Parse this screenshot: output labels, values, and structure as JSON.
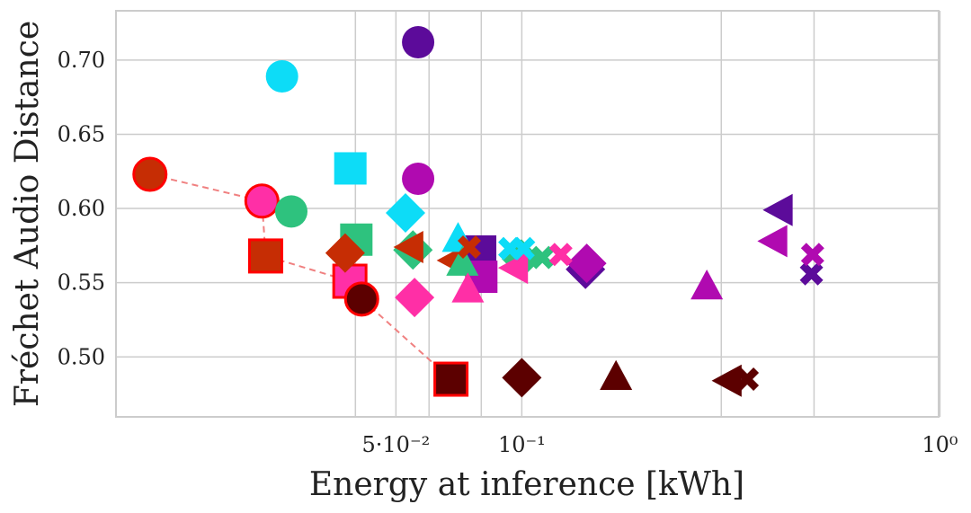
{
  "chart_data": {
    "type": "scatter",
    "title": "",
    "xlabel": "Energy at inference [kWh]",
    "ylabel": "Fréchet Audio Distance",
    "x_scale": "log",
    "xlim": [
      0.0107,
      0.993
    ],
    "ylim": [
      0.4596,
      0.7332
    ],
    "grid": true,
    "legend": "none",
    "x_ticks": [
      {
        "value": 0.05,
        "label": "5·10⁻²"
      },
      {
        "value": 0.1,
        "label": "10⁻¹"
      },
      {
        "value": 1,
        "label": "10⁰"
      }
    ],
    "x_minor_gridlines": [
      0.04,
      0.06,
      0.08,
      0.3,
      0.5
    ],
    "y_ticks": [
      0.5,
      0.55,
      0.6,
      0.65,
      0.7
    ],
    "pareto_front": {
      "color": "#f08080",
      "style": "dashed",
      "x": [
        0.0129,
        0.0239,
        0.0244,
        0.0388,
        0.0414,
        0.0677
      ],
      "y": [
        0.623,
        0.605,
        0.568,
        0.551,
        0.539,
        0.485
      ]
    },
    "points": [
      {
        "x": 0.0129,
        "y": 0.623,
        "marker": "circle",
        "color": "#c62d04",
        "pareto": true
      },
      {
        "x": 0.0239,
        "y": 0.605,
        "marker": "circle",
        "color": "#ff2fa6",
        "pareto": true
      },
      {
        "x": 0.0244,
        "y": 0.568,
        "marker": "square",
        "color": "#c62d04",
        "pareto": true
      },
      {
        "x": 0.0388,
        "y": 0.551,
        "marker": "square",
        "color": "#ff2fa6",
        "pareto": true
      },
      {
        "x": 0.0414,
        "y": 0.539,
        "marker": "circle",
        "color": "#5c0000",
        "pareto": true
      },
      {
        "x": 0.0677,
        "y": 0.485,
        "marker": "square",
        "color": "#5c0000",
        "pareto": true
      },
      {
        "x": 0.0267,
        "y": 0.689,
        "marker": "circle",
        "color": "#0ddcf7",
        "pareto": false
      },
      {
        "x": 0.0281,
        "y": 0.598,
        "marker": "circle",
        "color": "#2ec27e",
        "pareto": false
      },
      {
        "x": 0.0565,
        "y": 0.712,
        "marker": "circle",
        "color": "#5c0b9a",
        "pareto": false
      },
      {
        "x": 0.0565,
        "y": 0.62,
        "marker": "circle",
        "color": "#b00ab0",
        "pareto": false
      },
      {
        "x": 0.0389,
        "y": 0.627,
        "marker": "square",
        "color": "#0ddcf7",
        "pareto": false
      },
      {
        "x": 0.0402,
        "y": 0.579,
        "marker": "square",
        "color": "#2ec27e",
        "pareto": false
      },
      {
        "x": 0.0795,
        "y": 0.571,
        "marker": "square",
        "color": "#5c0b9a",
        "pareto": false
      },
      {
        "x": 0.08,
        "y": 0.554,
        "marker": "square",
        "color": "#b00ab0",
        "pareto": false
      },
      {
        "x": 0.0378,
        "y": 0.57,
        "marker": "diamond",
        "color": "#c62d04",
        "pareto": false
      },
      {
        "x": 0.0527,
        "y": 0.597,
        "marker": "diamond",
        "color": "#0ddcf7",
        "pareto": false
      },
      {
        "x": 0.0549,
        "y": 0.572,
        "marker": "diamond",
        "color": "#2ec27e",
        "pareto": false
      },
      {
        "x": 0.0554,
        "y": 0.54,
        "marker": "diamond",
        "color": "#ff2fa6",
        "pareto": false
      },
      {
        "x": 0.0998,
        "y": 0.566,
        "marker": "diamond",
        "color": "#2ec27e",
        "pareto": false
      },
      {
        "x": 0.142,
        "y": 0.559,
        "marker": "diamond",
        "color": "#5c0b9a",
        "pareto": false
      },
      {
        "x": 0.143,
        "y": 0.563,
        "marker": "diamond",
        "color": "#b00ab0",
        "pareto": false
      },
      {
        "x": 0.1,
        "y": 0.486,
        "marker": "diamond",
        "color": "#5c0000",
        "pareto": false
      },
      {
        "x": 0.0539,
        "y": 0.574,
        "marker": "triangle-left",
        "color": "#c62d04",
        "pareto": false
      },
      {
        "x": 0.0684,
        "y": 0.565,
        "marker": "triangle-left",
        "color": "#c62d04",
        "pareto": false
      },
      {
        "x": 0.0959,
        "y": 0.56,
        "marker": "triangle-left",
        "color": "#ff2fa6",
        "pareto": false
      },
      {
        "x": 0.412,
        "y": 0.599,
        "marker": "triangle-left",
        "color": "#5c0b9a",
        "pareto": false
      },
      {
        "x": 0.4,
        "y": 0.578,
        "marker": "triangle-left",
        "color": "#b00ab0",
        "pareto": false
      },
      {
        "x": 0.311,
        "y": 0.484,
        "marker": "triangle-left",
        "color": "#5c0000",
        "pareto": false
      },
      {
        "x": 0.0704,
        "y": 0.58,
        "marker": "triangle-up",
        "color": "#0ddcf7",
        "pareto": false
      },
      {
        "x": 0.0721,
        "y": 0.564,
        "marker": "triangle-up",
        "color": "#2ec27e",
        "pareto": false
      },
      {
        "x": 0.0743,
        "y": 0.546,
        "marker": "triangle-up",
        "color": "#ff2fa6",
        "pareto": false
      },
      {
        "x": 0.277,
        "y": 0.548,
        "marker": "triangle-up",
        "color": "#b00ab0",
        "pareto": false
      },
      {
        "x": 0.168,
        "y": 0.487,
        "marker": "triangle-up",
        "color": "#5c0000",
        "pareto": false
      },
      {
        "x": 0.0749,
        "y": 0.574,
        "marker": "x",
        "color": "#c62d04",
        "pareto": false
      },
      {
        "x": 0.0936,
        "y": 0.573,
        "marker": "x",
        "color": "#0ddcf7",
        "pareto": false
      },
      {
        "x": 0.101,
        "y": 0.573,
        "marker": "x",
        "color": "#0ddcf7",
        "pareto": false
      },
      {
        "x": 0.112,
        "y": 0.567,
        "marker": "x",
        "color": "#2ec27e",
        "pareto": false
      },
      {
        "x": 0.124,
        "y": 0.569,
        "marker": "x",
        "color": "#ff2fa6",
        "pareto": false
      },
      {
        "x": 0.493,
        "y": 0.556,
        "marker": "x",
        "color": "#5c0b9a",
        "pareto": false
      },
      {
        "x": 0.496,
        "y": 0.569,
        "marker": "x",
        "color": "#b00ab0",
        "pareto": false
      },
      {
        "x": 0.346,
        "y": 0.485,
        "marker": "x",
        "color": "#5c0000",
        "pareto": false
      }
    ]
  }
}
